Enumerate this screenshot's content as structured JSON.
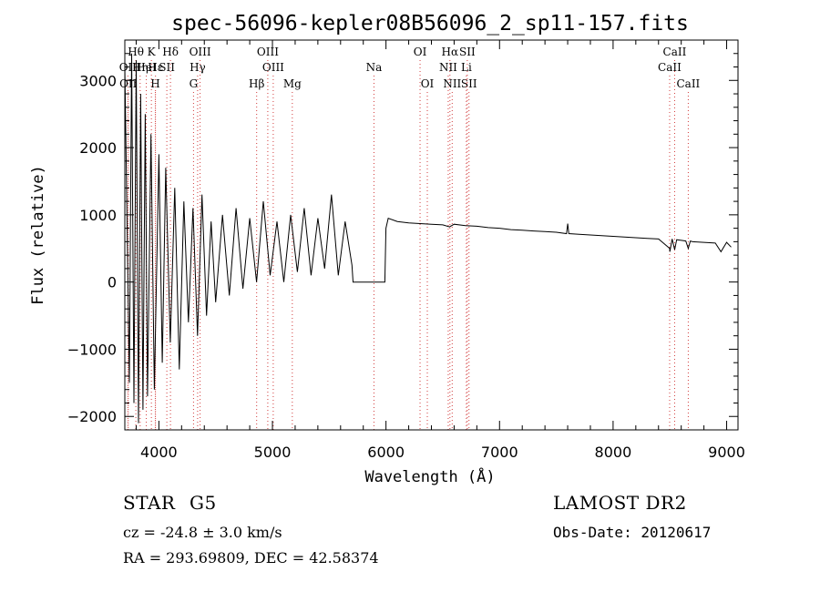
{
  "chart_data": {
    "type": "line",
    "title": "spec-56096-kepler08B56096_2_sp11-157.fits",
    "xlabel": "Wavelength (Å)",
    "ylabel": "Flux (relative)",
    "xlim": [
      3700,
      9100
    ],
    "ylim": [
      -2200,
      3600
    ],
    "xticks": [
      4000,
      5000,
      6000,
      7000,
      8000,
      9000
    ],
    "yticks": [
      -2000,
      -1000,
      0,
      1000,
      2000,
      3000
    ],
    "grid": false,
    "series": [
      {
        "x": [
          3700,
          3740,
          3760,
          3780,
          3800,
          3820,
          3840,
          3860,
          3880,
          3900,
          3930,
          3960,
          4000,
          4030,
          4060,
          4100,
          4140,
          4180,
          4220,
          4260,
          4300,
          4340,
          4380,
          4420,
          4460,
          4500,
          4560,
          4620,
          4680,
          4740,
          4800,
          4860,
          4920,
          4980,
          5040,
          5100,
          5160,
          5220,
          5280,
          5340,
          5400,
          5460,
          5520,
          5580,
          5640,
          5700,
          5710,
          5990,
          6000,
          6020,
          6100,
          6200,
          6300,
          6400,
          6500,
          6560,
          6600,
          6700,
          6800,
          6900,
          7000,
          7100,
          7200,
          7300,
          7400,
          7500,
          7590,
          7600,
          7610,
          7700,
          7800,
          7900,
          8000,
          8100,
          8200,
          8300,
          8400,
          8498,
          8500,
          8520,
          8542,
          8560,
          8600,
          8640,
          8662,
          8680,
          8700,
          8800,
          8900,
          8950,
          9000,
          9040
        ],
        "values": [
          3200,
          -1500,
          3400,
          -1800,
          3300,
          -2100,
          2800,
          -1900,
          2500,
          -1700,
          2200,
          -1600,
          1900,
          -1200,
          1700,
          -900,
          1400,
          -1300,
          1200,
          -600,
          1100,
          -800,
          1300,
          -500,
          900,
          -300,
          1000,
          -200,
          1100,
          -100,
          950,
          0,
          1200,
          100,
          900,
          0,
          1000,
          150,
          1100,
          100,
          950,
          200,
          1300,
          100,
          900,
          250,
          0,
          0,
          800,
          950,
          900,
          880,
          870,
          860,
          850,
          820,
          860,
          840,
          830,
          810,
          800,
          780,
          770,
          760,
          750,
          740,
          720,
          870,
          720,
          710,
          700,
          690,
          680,
          670,
          660,
          650,
          640,
          500,
          450,
          640,
          480,
          630,
          620,
          610,
          500,
          610,
          600,
          590,
          580,
          450,
          590,
          520
        ]
      }
    ],
    "lines": [
      {
        "label": "Hθ",
        "x": 3797,
        "row": 0
      },
      {
        "label": "OII",
        "x": 3727,
        "row": 1
      },
      {
        "label": "OII",
        "x": 3730,
        "row": 2
      },
      {
        "label": "Hη",
        "x": 3835,
        "row": 1
      },
      {
        "label": "Hε",
        "x": 3970,
        "row": 1
      },
      {
        "label": "K",
        "x": 3934,
        "row": 0
      },
      {
        "label": "H",
        "x": 3969,
        "row": 2
      },
      {
        "label": "HeI",
        "x": 3889,
        "row": 1
      },
      {
        "label": "SII",
        "x": 4070,
        "row": 1
      },
      {
        "label": "Hδ",
        "x": 4102,
        "row": 0
      },
      {
        "label": "OIII",
        "x": 4363,
        "row": 0
      },
      {
        "label": "Hγ",
        "x": 4341,
        "row": 1
      },
      {
        "label": "G",
        "x": 4305,
        "row": 2
      },
      {
        "label": "Hβ",
        "x": 4861,
        "row": 2
      },
      {
        "label": "OIII",
        "x": 4959,
        "row": 0
      },
      {
        "label": "OIII",
        "x": 5007,
        "row": 1
      },
      {
        "label": "Mg",
        "x": 5175,
        "row": 2
      },
      {
        "label": "Na",
        "x": 5894,
        "row": 1
      },
      {
        "label": "OI",
        "x": 6300,
        "row": 0
      },
      {
        "label": "OI",
        "x": 6364,
        "row": 2
      },
      {
        "label": "Hα",
        "x": 6563,
        "row": 0
      },
      {
        "label": "NII",
        "x": 6548,
        "row": 1
      },
      {
        "label": "NII",
        "x": 6583,
        "row": 2
      },
      {
        "label": "SII",
        "x": 6716,
        "row": 0
      },
      {
        "label": "SII",
        "x": 6731,
        "row": 2
      },
      {
        "label": "Li",
        "x": 6708,
        "row": 1
      },
      {
        "label": "CaII",
        "x": 8542,
        "row": 0
      },
      {
        "label": "CaII",
        "x": 8498,
        "row": 1
      },
      {
        "label": "CaII",
        "x": 8662,
        "row": 2
      }
    ]
  },
  "info": {
    "object_class": "STAR",
    "subclass": "G5",
    "survey": "LAMOST DR2",
    "cz": "cz = -24.8 ± 3.0 km/s",
    "obs_date": "Obs-Date: 20120617",
    "coords": "RA = 293.69809, DEC =  42.58374"
  }
}
